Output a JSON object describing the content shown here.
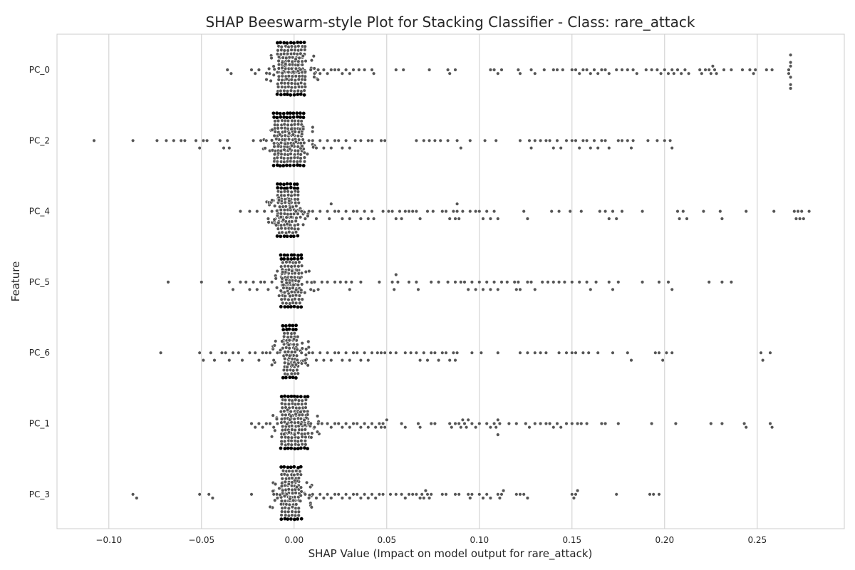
{
  "chart_data": {
    "type": "scatter",
    "subtype": "beeswarm",
    "title": "SHAP Beeswarm-style Plot for Stacking Classifier - Class: rare_attack",
    "xlabel": "SHAP Value (Impact on model output for rare_attack)",
    "ylabel": "Feature",
    "xlim": [
      -0.128,
      0.297
    ],
    "x_ticks": [
      -0.1,
      -0.05,
      0.0,
      0.05,
      0.1,
      0.15,
      0.2,
      0.25
    ],
    "x_tick_labels": [
      "−0.10",
      "−0.05",
      "0.00",
      "0.05",
      "0.10",
      "0.15",
      "0.20",
      "0.25"
    ],
    "grid": "vertical",
    "legend": "none",
    "dot_color": "#555555",
    "features": [
      {
        "name": "PC_0",
        "core": [
          -0.009,
          0.007
        ],
        "values": [
          -0.036,
          -0.034,
          -0.023,
          -0.021,
          -0.019,
          0.009,
          0.011,
          0.013,
          0.014,
          0.016,
          0.018,
          0.02,
          0.022,
          0.024,
          0.026,
          0.028,
          0.03,
          0.032,
          0.035,
          0.038,
          0.042,
          0.043,
          0.055,
          0.059,
          0.073,
          0.083,
          0.084,
          0.087,
          0.106,
          0.108,
          0.11,
          0.112,
          0.121,
          0.122,
          0.128,
          0.13,
          0.135,
          0.14,
          0.142,
          0.145,
          0.15,
          0.152,
          0.154,
          0.156,
          0.158,
          0.16,
          0.162,
          0.164,
          0.166,
          0.168,
          0.17,
          0.174,
          0.177,
          0.18,
          0.183,
          0.185,
          0.19,
          0.193,
          0.196,
          0.198,
          0.2,
          0.202,
          0.204,
          0.205,
          0.207,
          0.209,
          0.211,
          0.213,
          0.219,
          0.22,
          0.222,
          0.224,
          0.225,
          0.226,
          0.227,
          0.228,
          0.232,
          0.236,
          0.242,
          0.246,
          0.248,
          0.249,
          0.255,
          0.258,
          0.267,
          0.267,
          0.268,
          0.268,
          0.268,
          0.268,
          0.268,
          0.268
        ]
      },
      {
        "name": "PC_2",
        "core": [
          -0.011,
          0.006
        ],
        "values": [
          -0.108,
          -0.087,
          -0.074,
          -0.069,
          -0.065,
          -0.061,
          -0.059,
          -0.053,
          -0.051,
          -0.049,
          -0.047,
          -0.04,
          -0.038,
          -0.036,
          -0.035,
          -0.022,
          -0.018,
          -0.015,
          0.008,
          0.01,
          0.012,
          0.014,
          0.016,
          0.018,
          0.02,
          0.022,
          0.024,
          0.026,
          0.028,
          0.03,
          0.033,
          0.036,
          0.04,
          0.042,
          0.047,
          0.049,
          0.066,
          0.07,
          0.073,
          0.076,
          0.079,
          0.083,
          0.088,
          0.09,
          0.095,
          0.103,
          0.109,
          0.122,
          0.127,
          0.128,
          0.13,
          0.133,
          0.136,
          0.138,
          0.14,
          0.142,
          0.144,
          0.147,
          0.15,
          0.152,
          0.154,
          0.156,
          0.158,
          0.16,
          0.162,
          0.164,
          0.166,
          0.168,
          0.17,
          0.175,
          0.177,
          0.18,
          0.182,
          0.183,
          0.191,
          0.196,
          0.2,
          0.203,
          0.204
        ]
      },
      {
        "name": "PC_4",
        "core": [
          -0.009,
          0.003
        ],
        "values": [
          -0.029,
          -0.024,
          -0.02,
          -0.016,
          -0.014,
          -0.012,
          0.004,
          0.006,
          0.008,
          0.01,
          0.012,
          0.014,
          0.018,
          0.019,
          0.02,
          0.022,
          0.024,
          0.026,
          0.028,
          0.03,
          0.032,
          0.034,
          0.036,
          0.038,
          0.04,
          0.042,
          0.043,
          0.048,
          0.051,
          0.053,
          0.055,
          0.057,
          0.058,
          0.06,
          0.062,
          0.064,
          0.066,
          0.068,
          0.072,
          0.075,
          0.08,
          0.082,
          0.084,
          0.086,
          0.087,
          0.088,
          0.088,
          0.089,
          0.091,
          0.095,
          0.098,
          0.1,
          0.102,
          0.104,
          0.106,
          0.108,
          0.11,
          0.124,
          0.126,
          0.139,
          0.143,
          0.149,
          0.155,
          0.165,
          0.168,
          0.17,
          0.172,
          0.174,
          0.177,
          0.188,
          0.207,
          0.208,
          0.21,
          0.212,
          0.221,
          0.23,
          0.231,
          0.244,
          0.259,
          0.27,
          0.271,
          0.272,
          0.273,
          0.274,
          0.275,
          0.278
        ]
      },
      {
        "name": "PC_5",
        "core": [
          -0.007,
          0.005
        ],
        "values": [
          -0.068,
          -0.05,
          -0.035,
          -0.033,
          -0.029,
          -0.026,
          -0.024,
          -0.022,
          -0.02,
          -0.018,
          -0.016,
          -0.014,
          -0.012,
          0.007,
          0.009,
          0.011,
          0.013,
          0.015,
          0.018,
          0.022,
          0.025,
          0.028,
          0.03,
          0.031,
          0.036,
          0.046,
          0.053,
          0.054,
          0.055,
          0.056,
          0.062,
          0.066,
          0.067,
          0.074,
          0.078,
          0.083,
          0.087,
          0.09,
          0.092,
          0.094,
          0.096,
          0.098,
          0.1,
          0.102,
          0.104,
          0.106,
          0.108,
          0.11,
          0.112,
          0.115,
          0.119,
          0.12,
          0.121,
          0.122,
          0.126,
          0.128,
          0.13,
          0.134,
          0.137,
          0.14,
          0.143,
          0.146,
          0.15,
          0.154,
          0.158,
          0.16,
          0.163,
          0.17,
          0.172,
          0.175,
          0.188,
          0.197,
          0.202,
          0.204,
          0.224,
          0.231,
          0.236
        ]
      },
      {
        "name": "PC_6",
        "core": [
          -0.006,
          0.003
        ],
        "values": [
          -0.072,
          -0.051,
          -0.049,
          -0.045,
          -0.043,
          -0.039,
          -0.037,
          -0.035,
          -0.033,
          -0.03,
          -0.028,
          -0.024,
          -0.021,
          -0.019,
          -0.017,
          -0.015,
          -0.013,
          -0.011,
          -0.009,
          0.004,
          0.006,
          0.008,
          0.01,
          0.012,
          0.014,
          0.016,
          0.018,
          0.02,
          0.022,
          0.024,
          0.026,
          0.028,
          0.03,
          0.032,
          0.034,
          0.036,
          0.038,
          0.04,
          0.042,
          0.045,
          0.047,
          0.049,
          0.052,
          0.055,
          0.06,
          0.063,
          0.066,
          0.068,
          0.07,
          0.072,
          0.074,
          0.076,
          0.078,
          0.08,
          0.082,
          0.084,
          0.086,
          0.087,
          0.088,
          0.096,
          0.101,
          0.11,
          0.122,
          0.126,
          0.13,
          0.133,
          0.136,
          0.143,
          0.147,
          0.15,
          0.152,
          0.156,
          0.159,
          0.164,
          0.172,
          0.18,
          0.182,
          0.195,
          0.197,
          0.199,
          0.201,
          0.204,
          0.252,
          0.253,
          0.257
        ]
      },
      {
        "name": "PC_1",
        "core": [
          -0.007,
          0.008
        ],
        "values": [
          -0.023,
          -0.021,
          -0.019,
          -0.017,
          -0.015,
          -0.013,
          -0.011,
          -0.009,
          0.009,
          0.011,
          0.013,
          0.015,
          0.018,
          0.02,
          0.022,
          0.024,
          0.026,
          0.028,
          0.03,
          0.032,
          0.034,
          0.036,
          0.038,
          0.04,
          0.042,
          0.044,
          0.046,
          0.047,
          0.048,
          0.049,
          0.05,
          0.058,
          0.06,
          0.067,
          0.068,
          0.074,
          0.076,
          0.084,
          0.085,
          0.087,
          0.089,
          0.09,
          0.091,
          0.092,
          0.093,
          0.094,
          0.096,
          0.098,
          0.1,
          0.104,
          0.106,
          0.108,
          0.109,
          0.11,
          0.11,
          0.111,
          0.116,
          0.12,
          0.125,
          0.127,
          0.13,
          0.133,
          0.136,
          0.138,
          0.14,
          0.142,
          0.144,
          0.147,
          0.15,
          0.153,
          0.155,
          0.158,
          0.166,
          0.168,
          0.175,
          0.193,
          0.206,
          0.225,
          0.231,
          0.243,
          0.244,
          0.257,
          0.258
        ]
      },
      {
        "name": "PC_3",
        "core": [
          -0.007,
          0.004
        ],
        "values": [
          -0.087,
          -0.085,
          -0.051,
          -0.046,
          -0.044,
          -0.023,
          -0.011,
          -0.009,
          0.006,
          0.008,
          0.01,
          0.012,
          0.014,
          0.016,
          0.018,
          0.02,
          0.022,
          0.024,
          0.026,
          0.028,
          0.03,
          0.032,
          0.034,
          0.036,
          0.038,
          0.04,
          0.042,
          0.044,
          0.046,
          0.048,
          0.052,
          0.055,
          0.058,
          0.06,
          0.062,
          0.064,
          0.066,
          0.068,
          0.069,
          0.07,
          0.071,
          0.072,
          0.073,
          0.074,
          0.08,
          0.082,
          0.087,
          0.089,
          0.094,
          0.095,
          0.096,
          0.1,
          0.102,
          0.104,
          0.106,
          0.11,
          0.111,
          0.112,
          0.113,
          0.12,
          0.122,
          0.124,
          0.126,
          0.15,
          0.151,
          0.152,
          0.153,
          0.174,
          0.192,
          0.194,
          0.197
        ]
      }
    ]
  }
}
